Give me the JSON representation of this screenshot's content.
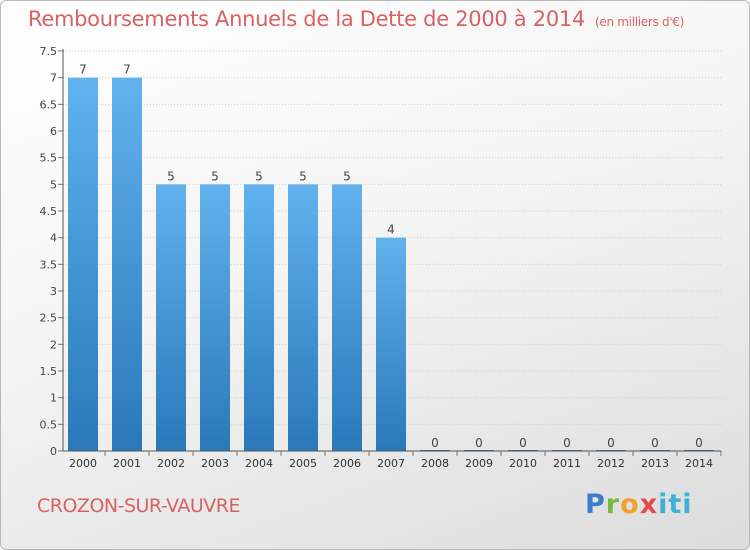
{
  "title": "Remboursements Annuels de la Dette de 2000 à 2014",
  "title_unit": "(en milliers d'€)",
  "commune": "CROZON-SUR-VAUVRE",
  "logo_text": "Proxiti",
  "colors": {
    "title": "#d86262",
    "bar_light": "#62b2ee",
    "bar_dark": "#2a78b8",
    "axis": "#555555",
    "grid": "#d0d0d0"
  },
  "chart_data": {
    "type": "bar",
    "categories": [
      "2000",
      "2001",
      "2002",
      "2003",
      "2004",
      "2005",
      "2006",
      "2007",
      "2008",
      "2009",
      "2010",
      "2011",
      "2012",
      "2013",
      "2014"
    ],
    "values": [
      7,
      7,
      5,
      5,
      5,
      5,
      5,
      4,
      0,
      0,
      0,
      0,
      0,
      0,
      0
    ],
    "data_labels": [
      "7",
      "7",
      "5",
      "5",
      "5",
      "5",
      "5",
      "4",
      "0",
      "0",
      "0",
      "0",
      "0",
      "0",
      "0"
    ],
    "y_ticks": [
      "0",
      "0.5",
      "1",
      "1.5",
      "2",
      "2.5",
      "3",
      "3.5",
      "4",
      "4.5",
      "5",
      "5.5",
      "6",
      "6.5",
      "7",
      "7.5"
    ],
    "ylim": [
      0,
      7.5
    ],
    "grid": true,
    "title": "Remboursements Annuels de la Dette de 2000 à 2014",
    "xlabel": "",
    "ylabel": ""
  }
}
